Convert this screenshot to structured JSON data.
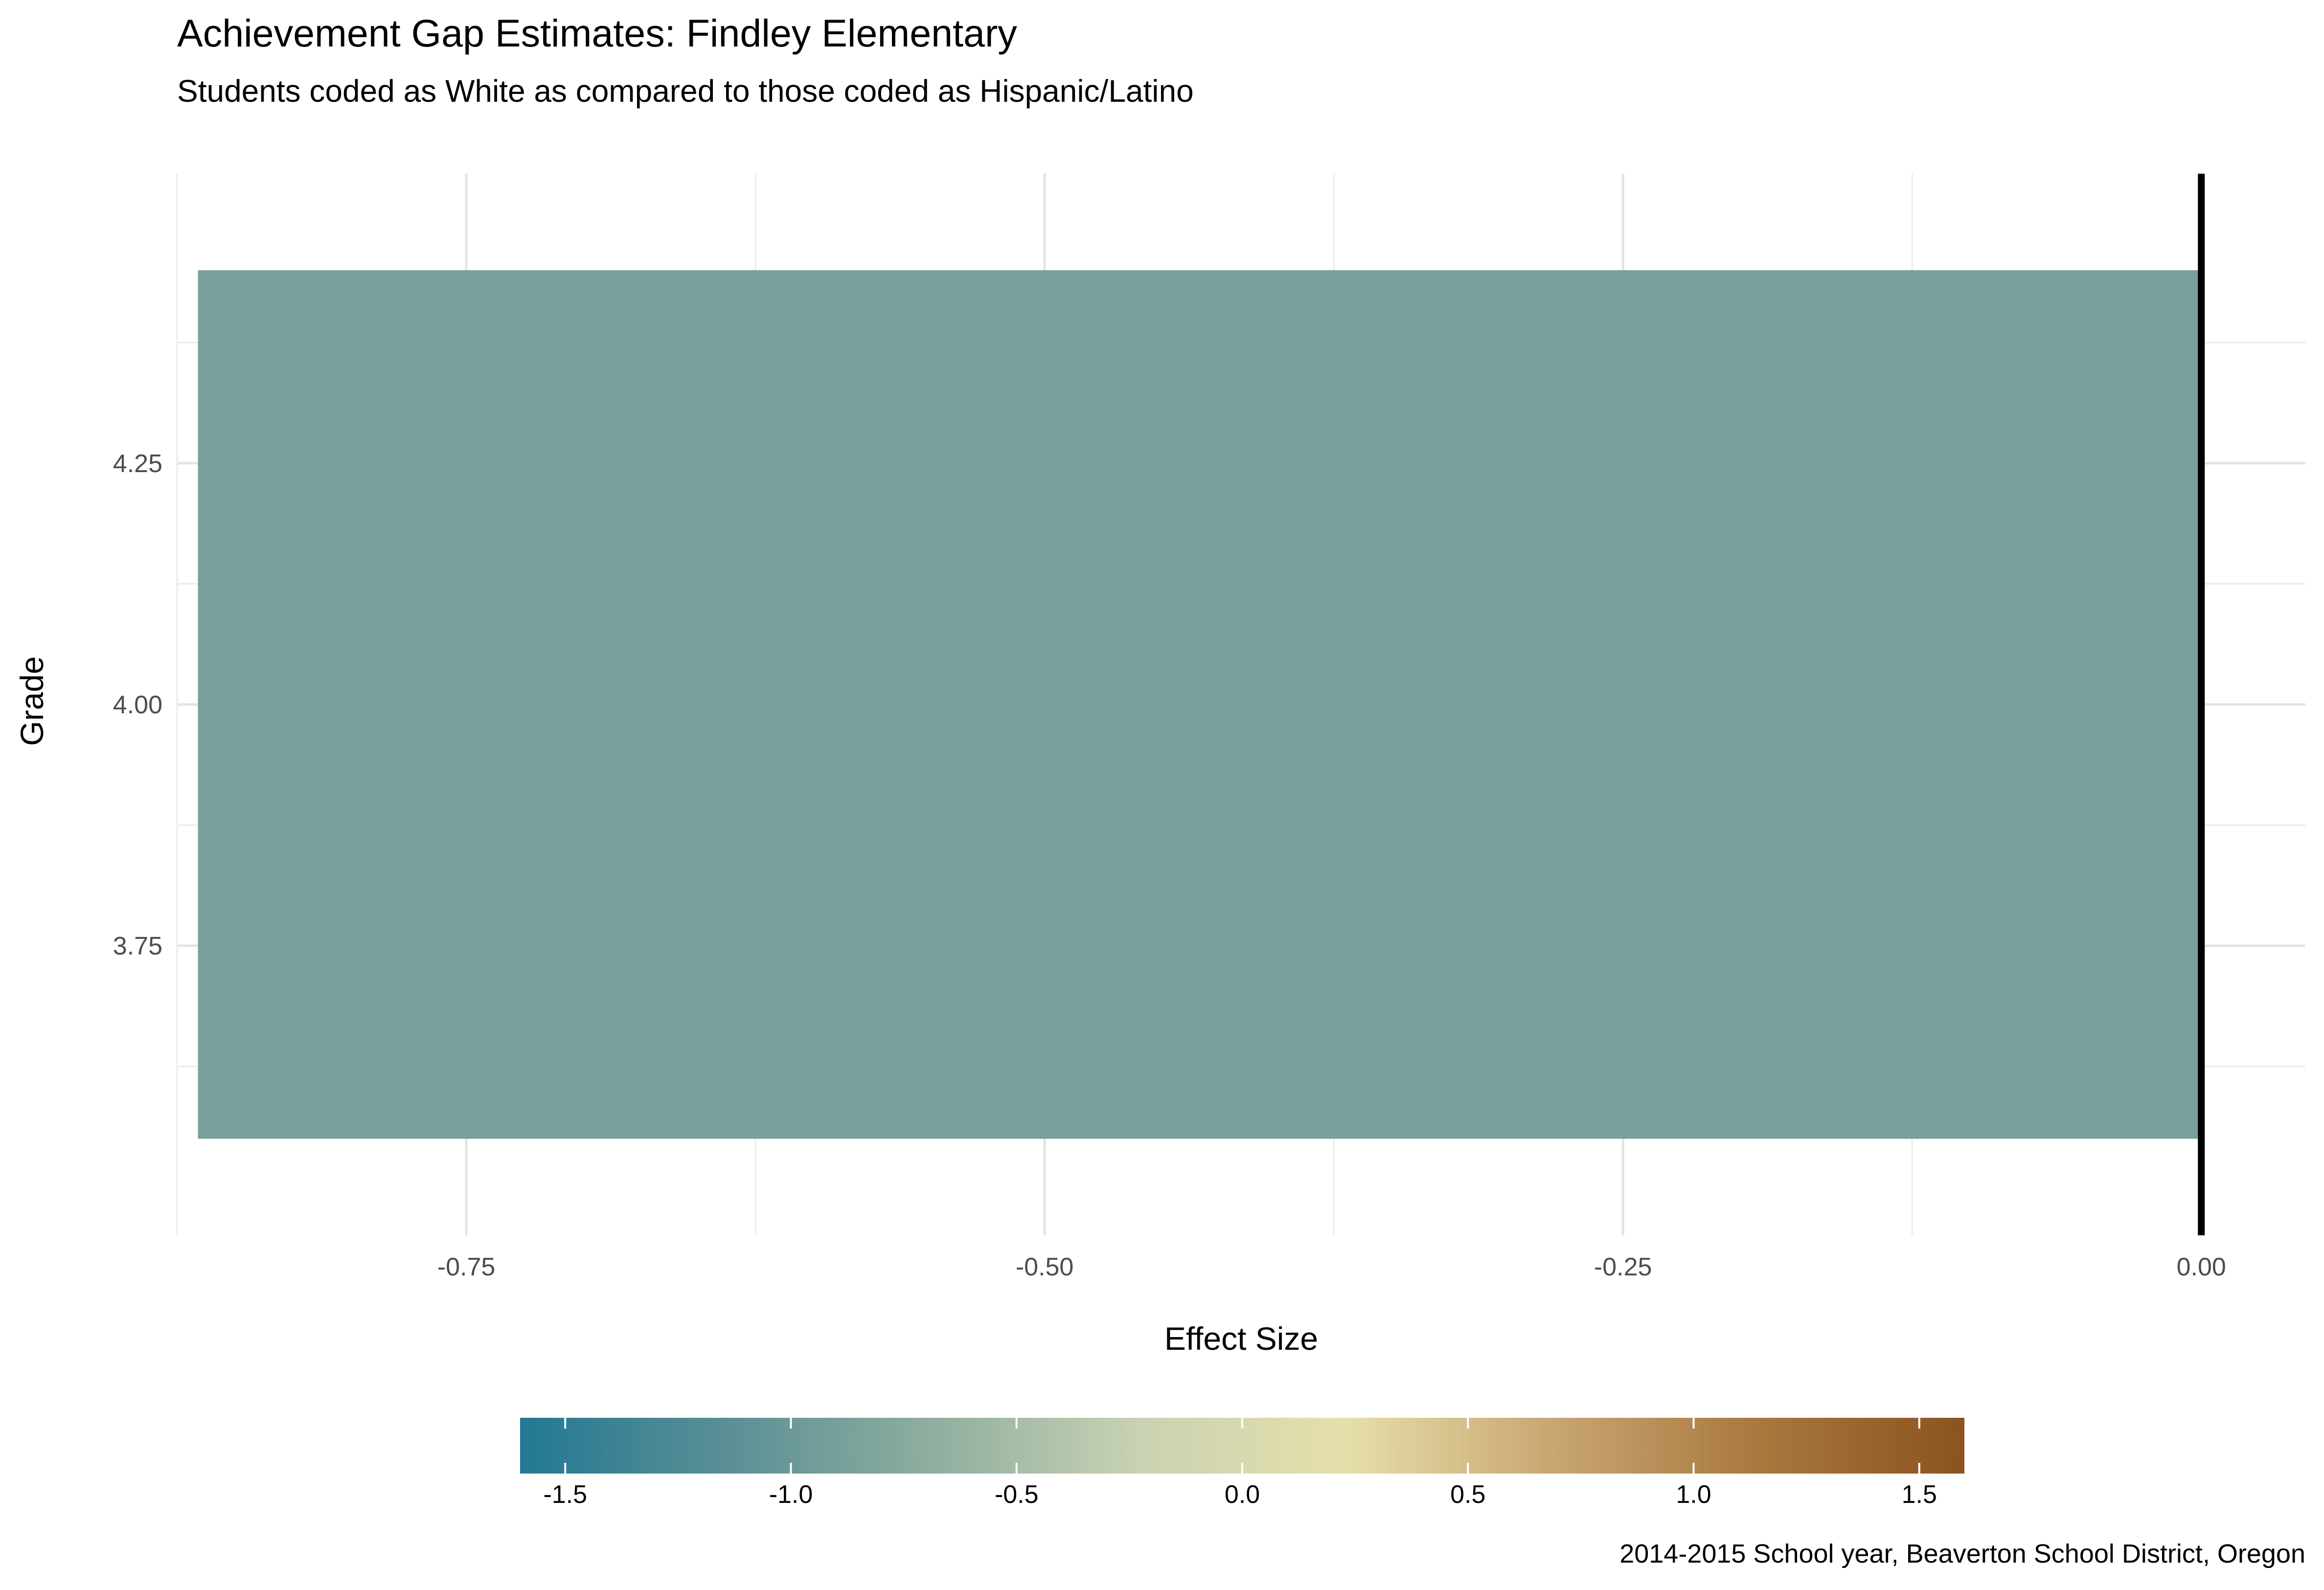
{
  "chart_data": {
    "type": "bar",
    "orientation": "horizontal",
    "title": "Achievement Gap Estimates: Findley Elementary",
    "subtitle": "Students coded as White as compared to those coded as Hispanic/Latino",
    "xlabel": "Effect Size",
    "ylabel": "Grade",
    "caption": "2014-2015 School year, Beaverton  School District, Oregon",
    "xlim": [
      -0.875,
      0.045
    ],
    "ylim": [
      3.45,
      4.55
    ],
    "x_ticks": [
      -0.75,
      -0.5,
      -0.25,
      0.0
    ],
    "x_tick_labels": [
      "-0.75",
      "-0.50",
      "-0.25",
      "0.00"
    ],
    "y_ticks": [
      3.75,
      4.0,
      4.25
    ],
    "y_tick_labels": [
      "3.75",
      "4.00",
      "4.25"
    ],
    "reference_line_x": 0,
    "grid": true,
    "bars": [
      {
        "grade": 4,
        "effect_size": -0.866,
        "color": "#78a09d"
      }
    ],
    "legend": {
      "type": "colorbar",
      "position": "bottom",
      "range": [
        -1.6,
        1.6
      ],
      "ticks": [
        -1.5,
        -1.0,
        -0.5,
        0.0,
        0.5,
        1.0,
        1.5
      ],
      "tick_labels": [
        "-1.5",
        "-1.0",
        "-0.5",
        "0.0",
        "0.5",
        "1.0",
        "1.5"
      ],
      "colors": [
        "#227893",
        "#5a8f95",
        "#8fae9f",
        "#c9d2b3",
        "#e6dfaa",
        "#c9a672",
        "#a8783f",
        "#8b5320"
      ]
    }
  }
}
